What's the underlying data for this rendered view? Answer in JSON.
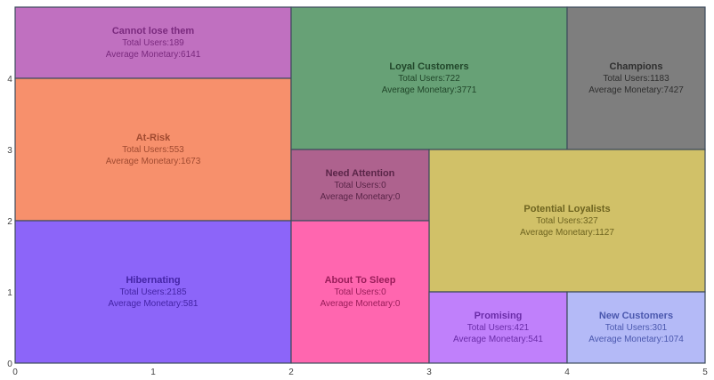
{
  "chart_data": {
    "type": "heatmap",
    "xlim": [
      0,
      5
    ],
    "ylim": [
      0,
      5
    ],
    "x_ticks": [
      "0",
      "1",
      "2",
      "3",
      "4",
      "5"
    ],
    "y_ticks": [
      "0",
      "1",
      "2",
      "3",
      "4"
    ],
    "grid": false,
    "segments": [
      {
        "name": "Cannot lose them",
        "x0": 0,
        "x1": 2,
        "y0": 4,
        "y1": 5,
        "total_users": "Total Users:189",
        "avg_monetary": "Average Monetary:6141",
        "color": "#C070C0",
        "text_color": "#7A2A7E"
      },
      {
        "name": "At-Risk",
        "x0": 0,
        "x1": 2,
        "y0": 2,
        "y1": 4,
        "total_users": "Total Users:553",
        "avg_monetary": "Average Monetary:1673",
        "color": "#F7906C",
        "text_color": "#A04A30"
      },
      {
        "name": "Hibernating",
        "x0": 0,
        "x1": 2,
        "y0": 0,
        "y1": 2,
        "total_users": "Total Users:2185",
        "avg_monetary": "Average Monetary:581",
        "color": "#8C65F9",
        "text_color": "#4424A6"
      },
      {
        "name": "Loyal Customers",
        "x0": 2,
        "x1": 4,
        "y0": 3,
        "y1": 5,
        "total_users": "Total Users:722",
        "avg_monetary": "Average Monetary:3771",
        "color": "#67A176",
        "text_color": "#21462A"
      },
      {
        "name": "Champions",
        "x0": 4,
        "x1": 5,
        "y0": 3,
        "y1": 5,
        "total_users": "Total Users:1183",
        "avg_monetary": "Average Monetary:7427",
        "color": "#7E7E7E",
        "text_color": "#2F2F2F"
      },
      {
        "name": "Need Attention",
        "x0": 2,
        "x1": 3,
        "y0": 2,
        "y1": 3,
        "total_users": "Total Users:0",
        "avg_monetary": "Average Monetary:0",
        "color": "#AE628E",
        "text_color": "#5A2548"
      },
      {
        "name": "Potential Loyalists",
        "x0": 3,
        "x1": 5,
        "y0": 1,
        "y1": 3,
        "total_users": "Total Users:327",
        "avg_monetary": "Average Monetary:1127",
        "color": "#D1C168",
        "text_color": "#6E6420"
      },
      {
        "name": "About To Sleep",
        "x0": 2,
        "x1": 3,
        "y0": 0,
        "y1": 2,
        "total_users": "Total Users:0",
        "avg_monetary": "Average Monetary:0",
        "color": "#FF66AF",
        "text_color": "#9A1D5A"
      },
      {
        "name": "Promising",
        "x0": 3,
        "x1": 4,
        "y0": 0,
        "y1": 1,
        "total_users": "Total Users:421",
        "avg_monetary": "Average Monetary:541",
        "color": "#C080FB",
        "text_color": "#6A2CA8"
      },
      {
        "name": "New Customers",
        "x0": 4,
        "x1": 5,
        "y0": 0,
        "y1": 1,
        "total_users": "Total Users:301",
        "avg_monetary": "Average Monetary:1074",
        "color": "#B4BAF7",
        "text_color": "#4B58AE"
      }
    ]
  }
}
